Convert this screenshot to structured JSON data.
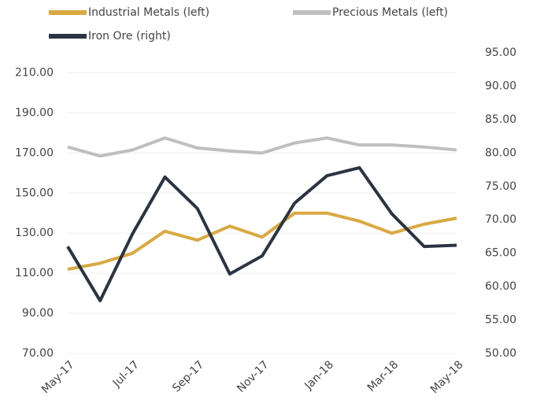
{
  "chart_data": {
    "type": "line",
    "categories": [
      "May-17",
      null,
      "Jul-17",
      null,
      "Sep-17",
      null,
      "Nov-17",
      null,
      "Jan-18",
      null,
      "Mar-18",
      null,
      "May-18"
    ],
    "series": [
      {
        "name": "Industrial Metals (left)",
        "color": "#d9a941",
        "values": [
          112,
          115,
          120,
          131,
          126.5,
          133.5,
          128,
          140,
          140,
          136,
          130,
          134.5,
          137.5
        ]
      },
      {
        "name": "Precious Metals (left)",
        "color": "#bfbfbf",
        "values": [
          173,
          168.5,
          171.5,
          177.5,
          172.5,
          171,
          170,
          175,
          177.5,
          174,
          174,
          173,
          171.5
        ]
      },
      {
        "name": "Iron Ore (right)",
        "color": "#2b3442",
        "axis": "y2",
        "values": [
          66,
          57.9,
          67.9,
          76.4,
          71.7,
          61.9,
          64.6,
          72.5,
          76.6,
          77.8,
          70.9,
          66,
          66.2
        ]
      }
    ],
    "ylim": [
      70,
      220
    ],
    "yticks": [
      {
        "value": 70,
        "label": "70.00"
      },
      {
        "value": 90,
        "label": "90.00"
      },
      {
        "value": 110,
        "label": "110.00"
      },
      {
        "value": 130,
        "label": "130.00"
      },
      {
        "value": 150,
        "label": "150.00"
      },
      {
        "value": 170,
        "label": "170.00"
      },
      {
        "value": 190,
        "label": "190.00"
      },
      {
        "value": 210,
        "label": "210.00"
      }
    ],
    "y2lim": [
      50,
      95
    ],
    "y2ticks": [
      {
        "value": 50,
        "label": "50.00"
      },
      {
        "value": 55,
        "label": "55.00"
      },
      {
        "value": 60,
        "label": "60.00"
      },
      {
        "value": 65,
        "label": "65.00"
      },
      {
        "value": 70,
        "label": "70.00"
      },
      {
        "value": 75,
        "label": "75.00"
      },
      {
        "value": 80,
        "label": "80.00"
      },
      {
        "value": 85,
        "label": "85.00"
      },
      {
        "value": 90,
        "label": "90.00"
      },
      {
        "value": 95,
        "label": "95.00"
      }
    ],
    "grid": true
  }
}
